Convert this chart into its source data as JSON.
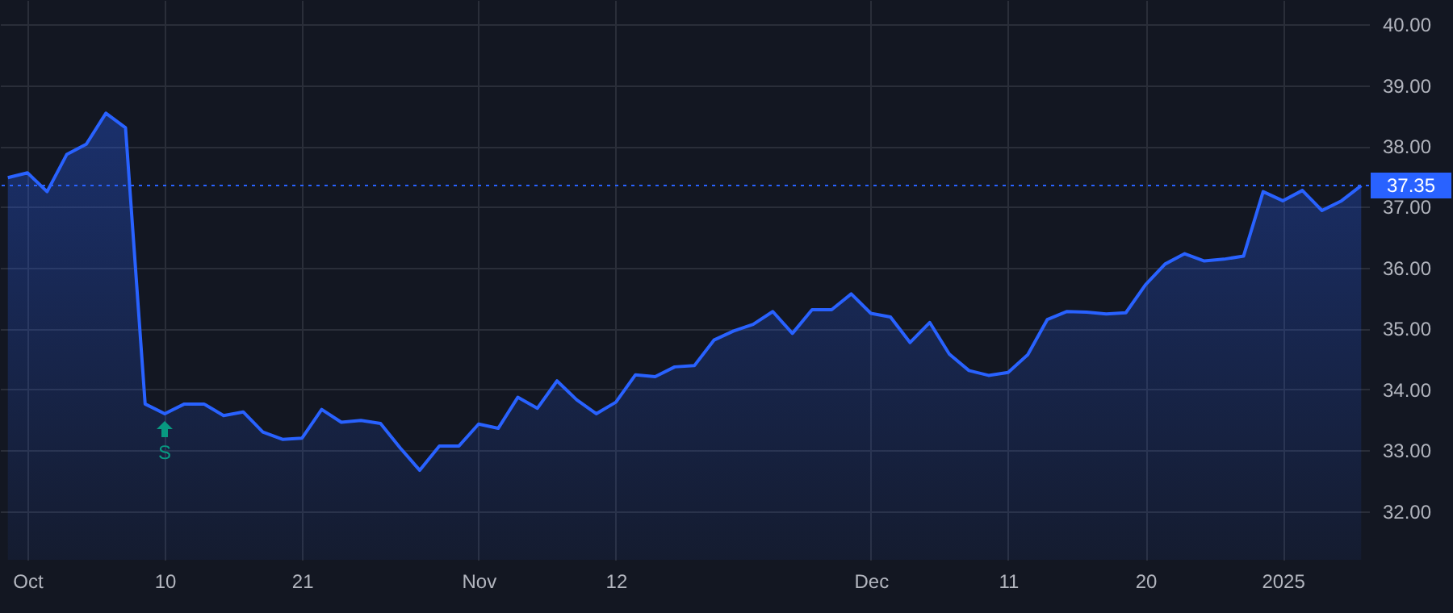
{
  "chart_data": {
    "type": "area",
    "categories": [
      null,
      "Oct",
      null,
      null,
      null,
      null,
      null,
      null,
      "10",
      null,
      null,
      null,
      null,
      null,
      null,
      "21",
      null,
      null,
      null,
      null,
      null,
      null,
      null,
      null,
      "Nov",
      null,
      null,
      null,
      null,
      null,
      null,
      "12",
      null,
      null,
      null,
      null,
      null,
      null,
      null,
      null,
      null,
      null,
      null,
      null,
      "Dec",
      null,
      null,
      null,
      null,
      null,
      null,
      "11",
      null,
      null,
      null,
      null,
      null,
      null,
      "20",
      null,
      null,
      null,
      null,
      null,
      null,
      "2025",
      null,
      null,
      null,
      null
    ],
    "series": [
      {
        "color": "#2962ff",
        "values": [
          37.48,
          37.56,
          37.25,
          37.86,
          38.03,
          38.54,
          38.3,
          33.76,
          33.6,
          33.76,
          33.76,
          33.57,
          33.63,
          33.3,
          33.18,
          33.2,
          33.67,
          33.46,
          33.49,
          33.44,
          33.04,
          32.67,
          33.07,
          33.07,
          33.43,
          33.36,
          33.87,
          33.69,
          34.14,
          33.83,
          33.6,
          33.79,
          34.24,
          34.21,
          34.37,
          34.39,
          34.81,
          34.96,
          35.07,
          35.28,
          34.92,
          35.31,
          35.31,
          35.57,
          35.25,
          35.19,
          34.77,
          35.1,
          34.58,
          34.31,
          34.23,
          34.28,
          34.57,
          35.15,
          35.28,
          35.27,
          35.24,
          35.26,
          35.72,
          36.06,
          36.23,
          36.11,
          36.14,
          36.19,
          37.25,
          37.1,
          37.27,
          36.94,
          37.1,
          37.35
        ]
      }
    ],
    "ylim": [
      31.2,
      40.4
    ],
    "yticks": [
      {
        "value": 32,
        "label": "32.00"
      },
      {
        "value": 33,
        "label": "33.00"
      },
      {
        "value": 34,
        "label": "34.00"
      },
      {
        "value": 35,
        "label": "35.00"
      },
      {
        "value": 36,
        "label": "36.00"
      },
      {
        "value": 37,
        "label": "37.00"
      },
      {
        "value": 38,
        "label": "38.00"
      },
      {
        "value": 39,
        "label": "39.00"
      },
      {
        "value": 40,
        "label": "40.00"
      }
    ],
    "grid": true,
    "ref_lines": [
      {
        "axis": "y",
        "value": 37.35,
        "label": "37.35",
        "color": "#2962ff",
        "line_style": "dotted"
      }
    ],
    "annotations": [
      {
        "text": "S",
        "x": "10",
        "y": 33.6
      }
    ]
  }
}
